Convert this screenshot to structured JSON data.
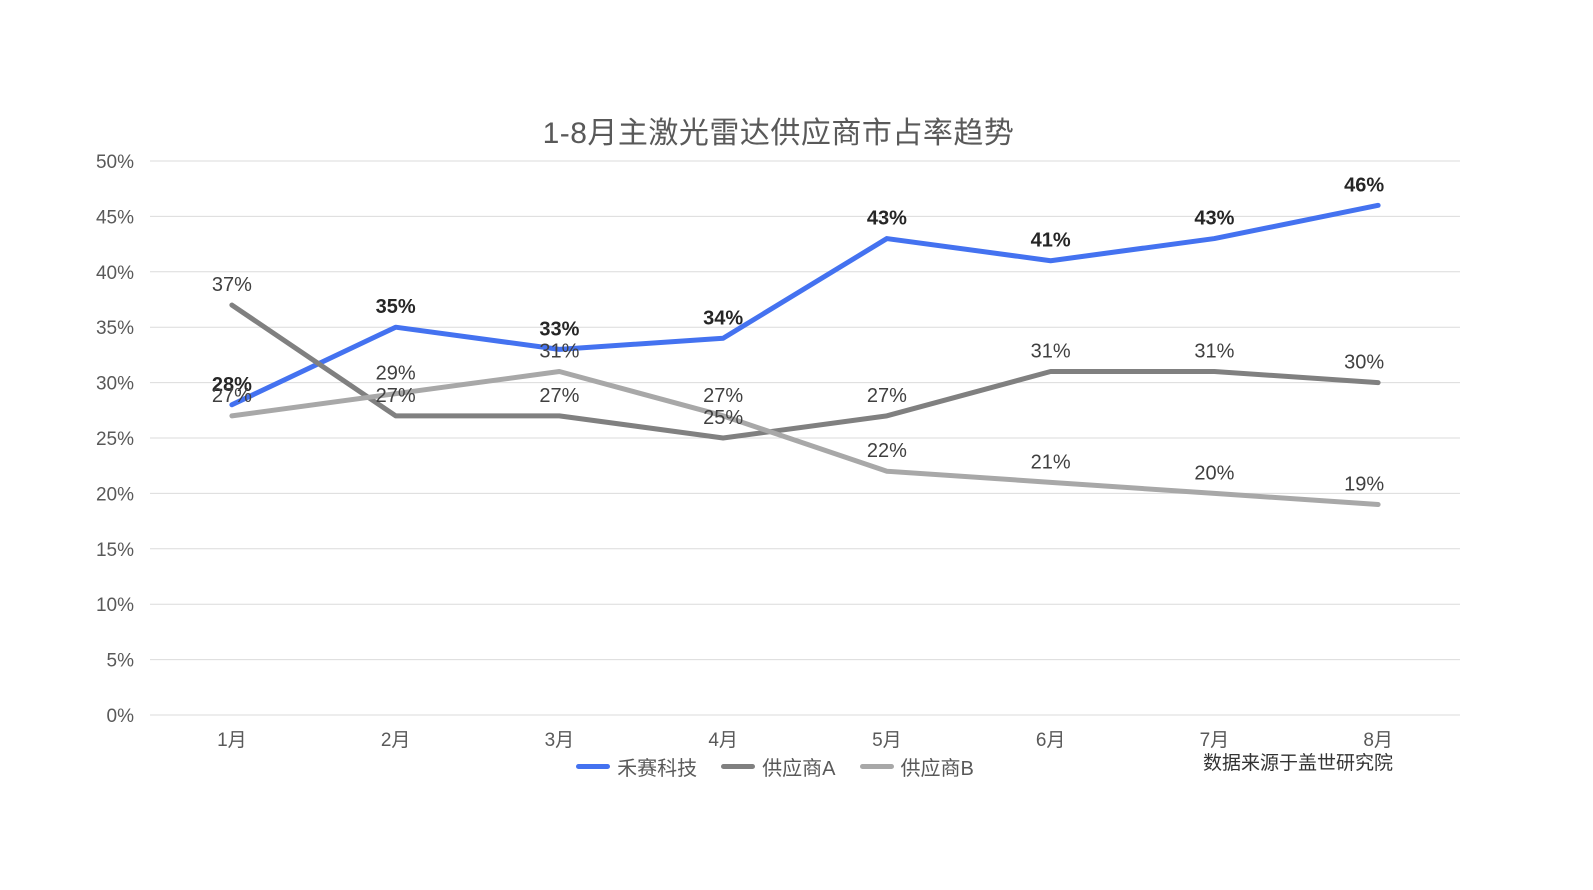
{
  "chart_data": {
    "type": "line",
    "title": "1-8月主激光雷达供应商市占率趋势",
    "categories": [
      "1月",
      "2月",
      "3月",
      "4月",
      "5月",
      "6月",
      "7月",
      "8月"
    ],
    "series": [
      {
        "name": "禾赛科技",
        "color": "#4472F0",
        "bold_labels": true,
        "values": [
          28,
          35,
          33,
          34,
          43,
          41,
          43,
          46
        ]
      },
      {
        "name": "供应商A",
        "color": "#808080",
        "bold_labels": false,
        "values": [
          37,
          27,
          27,
          25,
          27,
          31,
          31,
          30
        ]
      },
      {
        "name": "供应商B",
        "color": "#A8A8A8",
        "bold_labels": false,
        "values": [
          27,
          29,
          31,
          27,
          22,
          21,
          20,
          19
        ]
      }
    ],
    "ylim": [
      0,
      50
    ],
    "y_tick_step": 5,
    "y_tick_suffix": "%",
    "y_tick_labels": [
      "0%",
      "5%",
      "10%",
      "15%",
      "20%",
      "25%",
      "30%",
      "35%",
      "40%",
      "45%",
      "50%"
    ],
    "grid": "horizontal",
    "legend_position": "bottom",
    "source_note": "数据来源于盖世研究院",
    "colors": {
      "grid": "#DBDBDB",
      "axis_text": "#595959",
      "title_text": "#595959",
      "data_label": "#404040",
      "data_label_bold": "#262626",
      "source_text": "#333333",
      "background": "#FFFFFF"
    }
  }
}
